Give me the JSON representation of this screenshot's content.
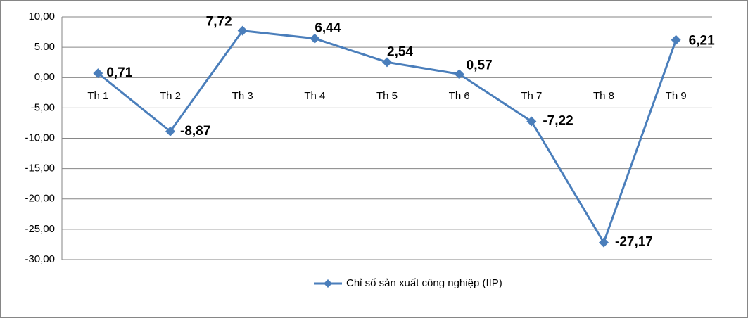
{
  "chart_data": {
    "type": "line",
    "categories": [
      "Th 1",
      "Th 2",
      "Th 3",
      "Th 4",
      "Th 5",
      "Th 6",
      "Th 7",
      "Th 8",
      "Th 9"
    ],
    "series": [
      {
        "name": "Chỉ số sản xuất công nghiệp (IIP)",
        "color": "#4a7ebb",
        "values": [
          0.71,
          -8.87,
          7.72,
          6.44,
          2.54,
          0.57,
          -7.22,
          -27.17,
          6.21
        ],
        "value_labels": [
          "0,71",
          "-8,87",
          "7,72",
          "6,44",
          "2,54",
          "0,57",
          "-7,22",
          "-27,17",
          "6,21"
        ]
      }
    ],
    "ylim": [
      -30,
      10
    ],
    "yticks": [
      {
        "value": -30,
        "label": "-30,00"
      },
      {
        "value": -25,
        "label": "-25,00"
      },
      {
        "value": -20,
        "label": "-20,00"
      },
      {
        "value": -15,
        "label": "-15,00"
      },
      {
        "value": -10,
        "label": "-10,00"
      },
      {
        "value": -5,
        "label": "-5,00"
      },
      {
        "value": 0,
        "label": "0,00"
      },
      {
        "value": 5,
        "label": "5,00"
      },
      {
        "value": 10,
        "label": "10,00"
      }
    ],
    "grid": true,
    "legend": "bottom"
  }
}
